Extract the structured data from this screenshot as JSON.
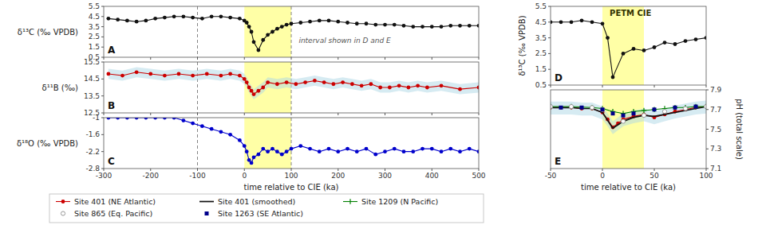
{
  "chart_data": [
    {
      "type": "line",
      "title": "A",
      "ylabel": "δ¹³C (‰ VPDB)",
      "annotation": "interval shown in D and E",
      "xlim": [
        -300,
        500
      ],
      "xticks": [
        -300,
        -200,
        -100,
        0,
        100,
        200,
        300,
        400,
        500
      ],
      "ylim": [
        0.5,
        5.5
      ],
      "yticks": [
        0.5,
        1.5,
        2.5,
        3.5,
        4.5,
        5.5
      ],
      "tick_labels": "y",
      "span": [
        0,
        100
      ],
      "span_color": "#ffff00",
      "vlines": [
        -100,
        100
      ],
      "color": "#111111",
      "marker": "circle",
      "line_style": "solid",
      "x": [
        -290,
        -270,
        -250,
        -230,
        -210,
        -190,
        -170,
        -150,
        -130,
        -110,
        -90,
        -70,
        -50,
        -30,
        -10,
        0,
        5,
        10,
        15,
        20,
        30,
        40,
        50,
        60,
        70,
        80,
        90,
        100,
        120,
        140,
        160,
        180,
        200,
        220,
        240,
        260,
        280,
        300,
        320,
        340,
        360,
        380,
        400,
        420,
        440,
        460,
        480,
        500
      ],
      "values": [
        4.3,
        4.2,
        4.1,
        4.0,
        4.1,
        4.3,
        4.4,
        4.5,
        4.5,
        4.4,
        4.3,
        4.5,
        4.5,
        4.4,
        4.3,
        4.1,
        3.9,
        3.5,
        3.0,
        2.0,
        1.2,
        2.2,
        2.7,
        3.0,
        3.3,
        3.5,
        3.7,
        3.8,
        3.9,
        4.0,
        4.1,
        4.1,
        4.0,
        3.9,
        3.8,
        3.8,
        3.7,
        3.7,
        3.7,
        3.6,
        3.5,
        3.5,
        3.5,
        3.5,
        3.6,
        3.6,
        3.6,
        3.6
      ]
    },
    {
      "type": "line",
      "title": "B",
      "ylabel": "δ¹¹B (‰)",
      "xlim": [
        -300,
        500
      ],
      "xticks": [
        -300,
        -200,
        -100,
        0,
        100,
        200,
        300,
        400,
        500
      ],
      "ylim": [
        12.5,
        15.5
      ],
      "yticks": [
        12.5,
        13.5,
        14.5,
        15.5
      ],
      "tick_labels": "y",
      "span": [
        0,
        100
      ],
      "span_color": "#ffff00",
      "vlines": [
        -100,
        100
      ],
      "color": "#cc0000",
      "marker": "circle",
      "line_style": "solid",
      "x": [
        -290,
        -260,
        -230,
        -200,
        -170,
        -140,
        -110,
        -80,
        -50,
        -30,
        -10,
        0,
        5,
        10,
        15,
        20,
        30,
        40,
        50,
        70,
        90,
        110,
        130,
        150,
        170,
        190,
        210,
        230,
        250,
        270,
        290,
        310,
        330,
        350,
        370,
        390,
        420,
        460,
        500
      ],
      "values": [
        14.8,
        14.7,
        14.9,
        14.8,
        14.7,
        14.8,
        14.7,
        14.8,
        14.7,
        14.8,
        14.7,
        14.5,
        14.3,
        14.0,
        13.8,
        13.6,
        13.8,
        14.0,
        14.3,
        14.2,
        14.3,
        14.2,
        14.3,
        14.4,
        14.3,
        14.2,
        14.3,
        14.2,
        14.1,
        14.2,
        14.0,
        14.0,
        14.1,
        14.0,
        14.1,
        14.0,
        14.1,
        13.9,
        14.0
      ],
      "band": {
        "color": "#add8e6",
        "upper": [
          15.1,
          15.0,
          15.2,
          15.1,
          15.0,
          15.1,
          15.0,
          15.1,
          15.0,
          15.1,
          15.0,
          14.8,
          14.6,
          14.3,
          14.1,
          13.9,
          14.1,
          14.3,
          14.6,
          14.5,
          14.6,
          14.5,
          14.6,
          14.7,
          14.6,
          14.5,
          14.6,
          14.5,
          14.4,
          14.5,
          14.3,
          14.3,
          14.4,
          14.3,
          14.4,
          14.3,
          14.4,
          14.2,
          14.3
        ],
        "lower": [
          14.5,
          14.4,
          14.6,
          14.5,
          14.4,
          14.5,
          14.4,
          14.5,
          14.4,
          14.5,
          14.4,
          14.2,
          14.0,
          13.7,
          13.5,
          13.3,
          13.5,
          13.7,
          14.0,
          13.9,
          14.0,
          13.9,
          14.0,
          14.1,
          14.0,
          13.9,
          14.0,
          13.9,
          13.8,
          13.9,
          13.7,
          13.7,
          13.8,
          13.7,
          13.8,
          13.7,
          13.8,
          13.6,
          13.7
        ]
      }
    },
    {
      "type": "line",
      "title": "C",
      "ylabel": "δ¹⁸O (‰ VPDB)",
      "xlabel": "time relative to CIE (ka)",
      "xlim": [
        -300,
        500
      ],
      "xticks": [
        -300,
        -200,
        -100,
        0,
        100,
        200,
        300,
        400,
        500
      ],
      "ylim": [
        -2.8,
        -1.0
      ],
      "yticks": [
        -2.8,
        -2.2,
        -1.6,
        -1.0
      ],
      "span": [
        0,
        100
      ],
      "span_color": "#ffff00",
      "vlines": [
        -100,
        100
      ],
      "color": "#0000cc",
      "marker": "circle",
      "line_style": "solid",
      "x": [
        -290,
        -270,
        -250,
        -230,
        -210,
        -190,
        -170,
        -150,
        -130,
        -110,
        -90,
        -70,
        -50,
        -30,
        -10,
        0,
        5,
        10,
        15,
        20,
        30,
        40,
        50,
        60,
        70,
        80,
        90,
        100,
        120,
        140,
        160,
        180,
        200,
        220,
        240,
        260,
        280,
        300,
        320,
        340,
        360,
        380,
        400,
        420,
        440,
        460,
        480,
        500
      ],
      "values": [
        -1.0,
        -1.0,
        -1.0,
        -1.0,
        -1.0,
        -1.0,
        -1.0,
        -1.0,
        -1.1,
        -1.2,
        -1.3,
        -1.4,
        -1.5,
        -1.6,
        -1.8,
        -2.0,
        -2.2,
        -2.5,
        -2.6,
        -2.4,
        -2.3,
        -2.1,
        -2.2,
        -2.1,
        -2.2,
        -2.3,
        -2.2,
        -2.1,
        -2.0,
        -2.1,
        -2.2,
        -2.1,
        -2.2,
        -2.1,
        -2.2,
        -2.1,
        -2.3,
        -2.2,
        -2.1,
        -2.2,
        -2.2,
        -2.1,
        -2.1,
        -2.2,
        -2.1,
        -2.2,
        -2.1,
        -2.2
      ]
    },
    {
      "type": "line",
      "title": "D",
      "ylabel": "δ¹³C (‰ VPDB)",
      "annotation": "PETM CIE",
      "xlim": [
        -50,
        100
      ],
      "xticks": [
        -50,
        0,
        50,
        100
      ],
      "ylim": [
        0.5,
        5.5
      ],
      "yticks": [
        0.5,
        1.5,
        2.5,
        3.5,
        4.5,
        5.5
      ],
      "tick_labels": "y",
      "span": [
        0,
        40
      ],
      "span_color": "#ffff00",
      "color": "#111111",
      "marker": "circle",
      "line_style": "solid",
      "x": [
        -50,
        -40,
        -30,
        -20,
        -10,
        0,
        5,
        10,
        20,
        30,
        40,
        50,
        60,
        70,
        80,
        90,
        100
      ],
      "values": [
        4.5,
        4.5,
        4.5,
        4.6,
        4.5,
        4.4,
        3.5,
        1.0,
        2.5,
        2.8,
        2.7,
        2.9,
        3.2,
        3.1,
        3.3,
        3.4,
        3.5
      ]
    },
    {
      "type": "line",
      "title": "E",
      "xlabel": "time relative to CIE (ka)",
      "y2label": "pH (total scale)",
      "xlim": [
        -50,
        100
      ],
      "xticks": [
        -50,
        0,
        50,
        100
      ],
      "y2lim": [
        7.1,
        7.9
      ],
      "y2ticks": [
        7.1,
        7.3,
        7.5,
        7.7,
        7.9
      ],
      "span": [
        0,
        40
      ],
      "span_color": "#ffff00",
      "legend": "bottom",
      "band": {
        "color": "#add8e6",
        "x": [
          -50,
          -40,
          -30,
          -20,
          -10,
          0,
          5,
          10,
          15,
          20,
          30,
          40,
          50,
          60,
          70,
          80,
          90,
          100
        ],
        "upper": [
          7.78,
          7.78,
          7.78,
          7.77,
          7.77,
          7.73,
          7.66,
          7.58,
          7.62,
          7.66,
          7.69,
          7.71,
          7.68,
          7.71,
          7.74,
          7.76,
          7.78,
          7.79
        ],
        "lower": [
          7.65,
          7.65,
          7.65,
          7.64,
          7.64,
          7.6,
          7.53,
          7.45,
          7.49,
          7.53,
          7.56,
          7.58,
          7.55,
          7.58,
          7.61,
          7.63,
          7.65,
          7.66
        ]
      },
      "series": [
        {
          "name": "Site 401 (NE Atlantic)",
          "color": "#cc0000",
          "marker": "circle",
          "line_style": "solid",
          "axis": "y2",
          "x": [
            -50,
            -40,
            -30,
            -20,
            -10,
            0,
            5,
            10,
            15,
            20,
            30,
            40,
            50,
            60,
            70,
            80,
            90,
            100
          ],
          "values": [
            7.72,
            7.72,
            7.72,
            7.71,
            7.71,
            7.67,
            7.6,
            7.52,
            7.56,
            7.6,
            7.63,
            7.65,
            7.62,
            7.65,
            7.68,
            7.7,
            7.72,
            7.73
          ]
        },
        {
          "name": "Site 401 (smoothed)",
          "color": "#111111",
          "marker": "none",
          "line_style": "solid",
          "axis": "y2",
          "x": [
            -50,
            -40,
            -30,
            -20,
            -10,
            0,
            5,
            10,
            20,
            30,
            40,
            50,
            60,
            70,
            80,
            90,
            100
          ],
          "values": [
            7.72,
            7.72,
            7.72,
            7.71,
            7.71,
            7.67,
            7.59,
            7.51,
            7.58,
            7.62,
            7.64,
            7.63,
            7.65,
            7.67,
            7.69,
            7.71,
            7.73
          ]
        },
        {
          "name": "Site 1209 (N Pacific)",
          "color": "#008000",
          "marker": "plus",
          "line_style": "solid",
          "axis": "y2",
          "x": [
            -50,
            -30,
            -10,
            0,
            10,
            20,
            30,
            40,
            50,
            60,
            70,
            80,
            90,
            100
          ],
          "values": [
            7.73,
            7.73,
            7.72,
            7.71,
            7.68,
            7.66,
            7.68,
            7.69,
            7.7,
            7.71,
            7.72,
            7.72,
            7.73,
            7.73
          ]
        },
        {
          "name": "Site 865 (Eq. Pacific)",
          "color": "#999999",
          "marker": "open-circle",
          "line_style": "none",
          "axis": "y2",
          "x": [
            -50,
            -30,
            -10,
            0,
            20,
            40,
            60,
            80,
            100
          ],
          "values": [
            7.73,
            7.73,
            7.72,
            7.7,
            7.58,
            7.64,
            7.68,
            7.71,
            7.73
          ]
        },
        {
          "name": "Site 1263 (SE Atlantic)",
          "color": "#00008b",
          "marker": "square",
          "line_style": "none",
          "axis": "y2",
          "x": [
            -40,
            -20,
            0,
            10,
            20,
            30,
            50,
            70,
            90
          ],
          "values": [
            7.72,
            7.72,
            7.7,
            7.66,
            7.64,
            7.66,
            7.7,
            7.72,
            7.73
          ]
        }
      ]
    }
  ]
}
